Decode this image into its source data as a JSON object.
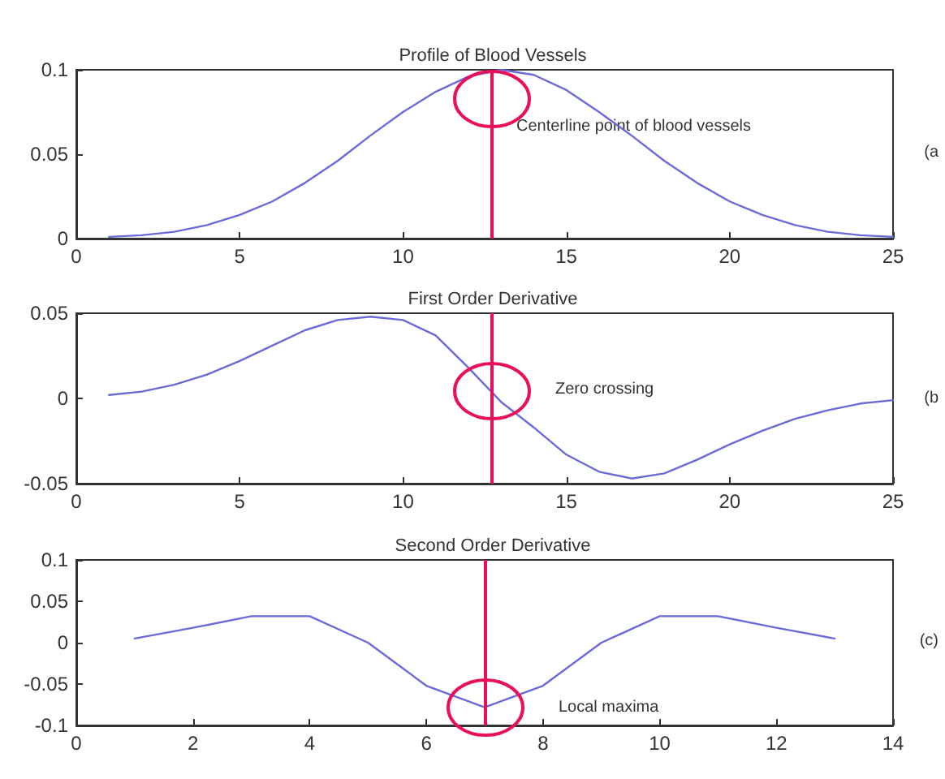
{
  "chart_data": [
    {
      "type": "line",
      "title": "Profile of Blood Vessels",
      "x": [
        1,
        2,
        3,
        4,
        5,
        6,
        7,
        8,
        9,
        10,
        11,
        12,
        13,
        14,
        15,
        16,
        17,
        18,
        19,
        20,
        21,
        22,
        23,
        24,
        25
      ],
      "series": [
        {
          "color": "#6a6ad8",
          "values": [
            0.001,
            0.002,
            0.004,
            0.008,
            0.014,
            0.022,
            0.033,
            0.046,
            0.061,
            0.075,
            0.087,
            0.096,
            0.1,
            0.097,
            0.088,
            0.075,
            0.061,
            0.046,
            0.033,
            0.022,
            0.014,
            0.008,
            0.004,
            0.002,
            0.001
          ]
        }
      ],
      "xlim": [
        0,
        25
      ],
      "xticks": [
        0,
        5,
        10,
        15,
        20,
        25
      ],
      "ylim": [
        0,
        0.1
      ],
      "yticks": [
        0,
        0.05,
        0.1
      ],
      "grid": false,
      "marker": "none",
      "line_style": "solid",
      "ref_lines": [
        {
          "axis": "x",
          "value": 12.7,
          "color": "#e8105a"
        }
      ],
      "annotations": [
        "Centerline point of blood vessels",
        "(a"
      ]
    },
    {
      "type": "line",
      "title": "First Order Derivative",
      "x": [
        1,
        2,
        3,
        4,
        5,
        6,
        7,
        8,
        9,
        10,
        11,
        12,
        13,
        14,
        15,
        16,
        17,
        18,
        19,
        20,
        21,
        22,
        23,
        24,
        25
      ],
      "series": [
        {
          "color": "#6a6ad8",
          "values": [
            0.002,
            0.004,
            0.008,
            0.014,
            0.022,
            0.031,
            0.04,
            0.046,
            0.048,
            0.046,
            0.037,
            0.018,
            -0.002,
            -0.017,
            -0.033,
            -0.043,
            -0.047,
            -0.044,
            -0.036,
            -0.027,
            -0.019,
            -0.012,
            -0.007,
            -0.003,
            -0.001
          ]
        }
      ],
      "xlim": [
        0,
        25
      ],
      "xticks": [
        0,
        5,
        10,
        15,
        20,
        25
      ],
      "ylim": [
        -0.05,
        0.05
      ],
      "yticks": [
        -0.05,
        0,
        0.05
      ],
      "grid": false,
      "marker": "none",
      "line_style": "solid",
      "ref_lines": [
        {
          "axis": "x",
          "value": 12.7,
          "color": "#e8105a"
        }
      ],
      "annotations": [
        "Zero crossing",
        "(b"
      ]
    },
    {
      "type": "line",
      "title": "Second Order Derivative",
      "x": [
        1,
        2,
        3,
        4,
        5,
        6,
        7,
        8,
        9,
        10,
        11,
        12,
        13
      ],
      "series": [
        {
          "color": "#6a6ad8",
          "values": [
            0.005,
            0.018,
            0.032,
            0.032,
            0,
            -0.052,
            -0.078,
            -0.052,
            0,
            0.032,
            0.032,
            0.018,
            0.005
          ]
        }
      ],
      "xlim": [
        0,
        14
      ],
      "xticks": [
        0,
        2,
        4,
        6,
        8,
        10,
        12,
        14
      ],
      "ylim": [
        -0.1,
        0.1
      ],
      "yticks": [
        -0.1,
        -0.05,
        0,
        0.05,
        0.1
      ],
      "grid": false,
      "marker": "none",
      "line_style": "solid",
      "ref_lines": [
        {
          "axis": "x",
          "value": 7,
          "color": "#e8105a"
        }
      ],
      "annotations": [
        "Local maxima",
        "(c)"
      ]
    }
  ]
}
